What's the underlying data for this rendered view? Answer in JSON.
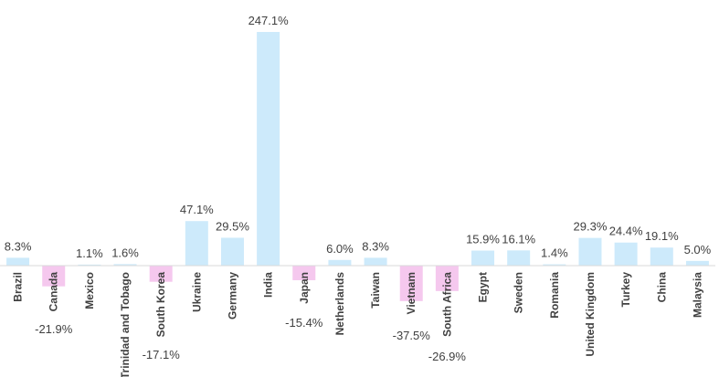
{
  "chart_data": {
    "type": "bar",
    "title": "",
    "xlabel": "",
    "ylabel": "",
    "categories": [
      "Brazil",
      "Canada",
      "Mexico",
      "Trinidad and Tobago",
      "South Korea",
      "Ukraine",
      "Germany",
      "India",
      "Japan",
      "Netherlands",
      "Taiwan",
      "Vietnam",
      "South Africa",
      "Egypt",
      "Sweden",
      "Romania",
      "United Kingdom",
      "Turkey",
      "China",
      "Malaysia"
    ],
    "values": [
      8.3,
      -21.9,
      1.1,
      1.6,
      -17.1,
      47.1,
      29.5,
      247.1,
      -15.4,
      6.0,
      8.3,
      -37.5,
      -26.9,
      15.9,
      16.1,
      1.4,
      29.3,
      24.4,
      19.1,
      5.0
    ],
    "value_labels": [
      "8.3%",
      "-21.9%",
      "1.1%",
      "1.6%",
      "-17.1%",
      "47.1%",
      "29.5%",
      "247.1%",
      "-15.4%",
      "6.0%",
      "8.3%",
      "-37.5%",
      "-26.9%",
      "15.9%",
      "16.1%",
      "1.4%",
      "29.3%",
      "24.4%",
      "19.1%",
      "5.0%"
    ],
    "colors": {
      "positive": "#cdeafb",
      "negative": "#f5c8ee",
      "axis": "#d9d9d9",
      "text": "#404040"
    },
    "grid": false,
    "legend": "none"
  }
}
